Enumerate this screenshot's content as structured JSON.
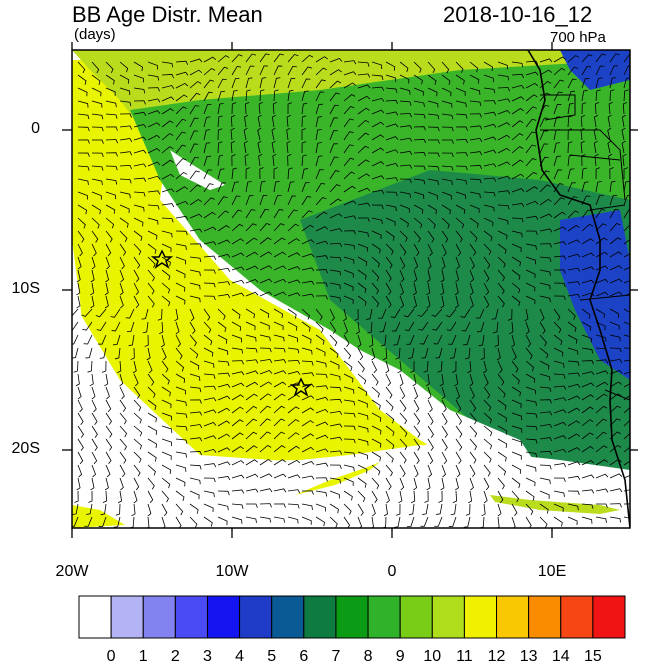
{
  "header": {
    "title": "BB Age Distr. Mean",
    "units": "(days)",
    "datetime": "2018-10-16_12",
    "level": "700 hPa"
  },
  "map": {
    "lat_ticks": [
      "0",
      "10S",
      "20S"
    ],
    "lon_ticks": [
      "20W",
      "10W",
      "0",
      "10E"
    ],
    "colors": {
      "ocean_old": "#e8f400",
      "ocean_mid": "#b9dc1c",
      "forest": "#2aa328",
      "green": "#3ab52a",
      "dark_green": "#1d8a4a",
      "continent_blue": "#1c43c6",
      "coast": "#000000"
    },
    "markers": [
      "star",
      "star"
    ]
  },
  "colorbar": {
    "labels": [
      "0",
      "1",
      "2",
      "3",
      "4",
      "5",
      "6",
      "7",
      "8",
      "9",
      "10",
      "11",
      "12",
      "13",
      "14",
      "15"
    ],
    "colors": [
      "#ffffff",
      "#b4b4f5",
      "#8282f0",
      "#4b4bf5",
      "#1414f0",
      "#1e3cc8",
      "#0a5a96",
      "#0e7b41",
      "#0c9b15",
      "#30b22a",
      "#79cd17",
      "#aedd1c",
      "#f0f000",
      "#fac800",
      "#fa8c00",
      "#f54614",
      "#f01414"
    ]
  }
}
